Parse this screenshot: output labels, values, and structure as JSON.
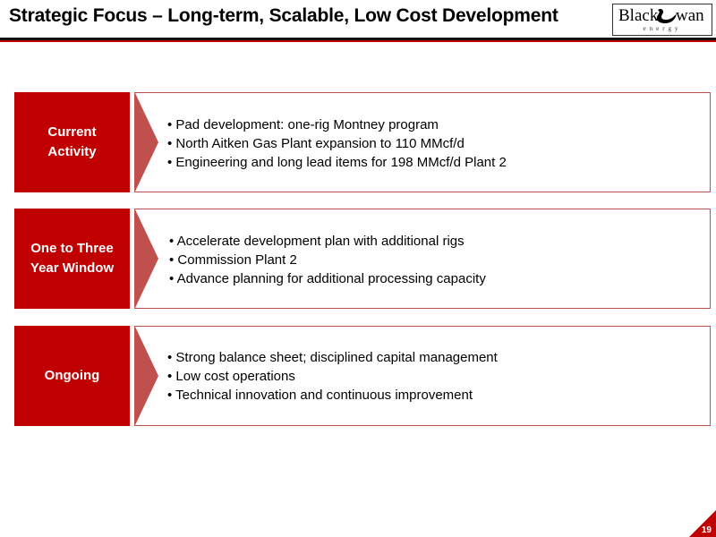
{
  "slide": {
    "title": "Strategic Focus – Long-term, Scalable, Low Cost Development",
    "page_number": "19"
  },
  "logo": {
    "word_left": "Black",
    "word_right": "wan",
    "subtitle": "energy",
    "icon": "swan-icon"
  },
  "rows": [
    {
      "label_line1": "Current",
      "label_line2": "Activity",
      "bullets": [
        "Pad development: one-rig Montney program",
        "North Aitken Gas Plant expansion to 110 MMcf/d",
        "Engineering and long lead items for 198 MMcf/d Plant 2"
      ]
    },
    {
      "label_line1": "One to Three",
      "label_line2": "Year Window",
      "bullets": [
        "Accelerate development plan with additional rigs",
        "Commission Plant 2",
        "Advance planning for additional processing capacity"
      ]
    },
    {
      "label_line1": "Ongoing",
      "label_line2": "",
      "bullets": [
        "Strong balance sheet; disciplined capital management",
        "Low cost operations",
        "Technical innovation and continuous improvement"
      ]
    }
  ],
  "colors": {
    "accent_red": "#c00000",
    "arrow_red": "#c0504d",
    "border_red": "#c0504d"
  }
}
